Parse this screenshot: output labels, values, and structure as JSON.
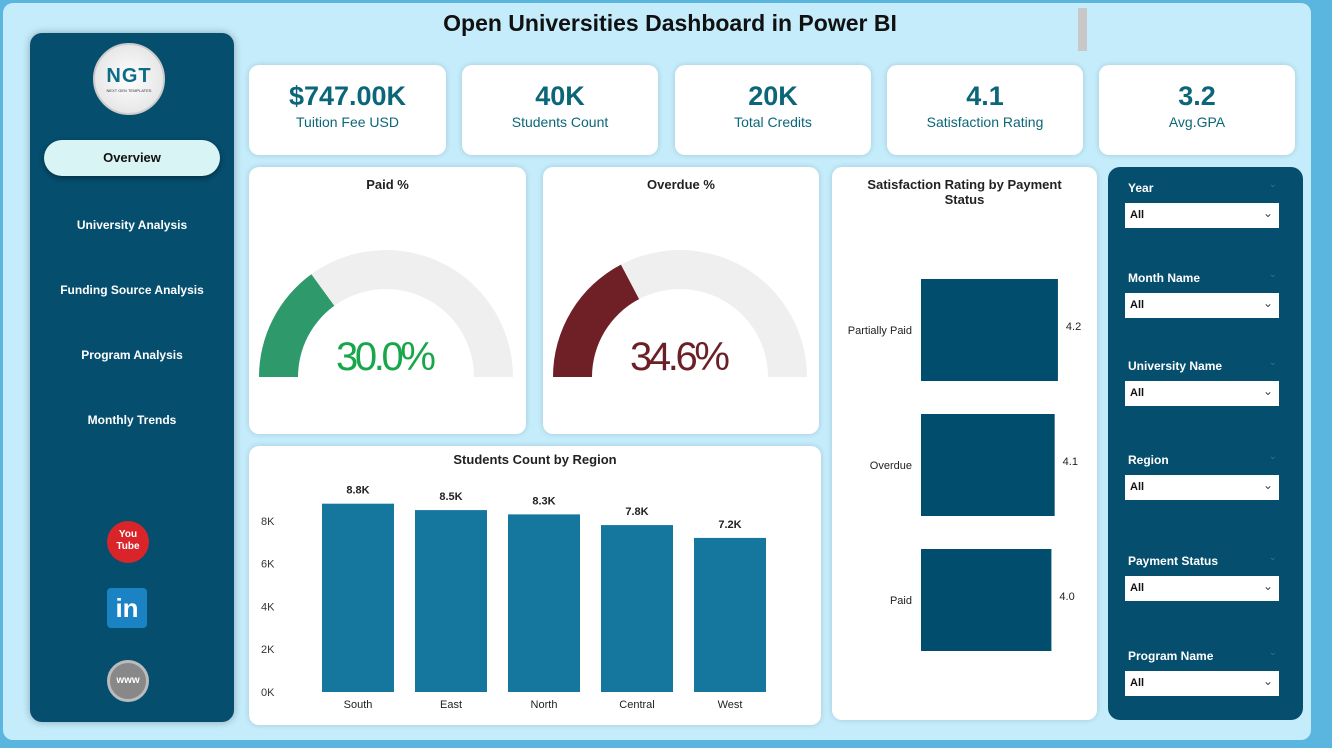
{
  "title": "Open Universities Dashboard in Power BI",
  "logo": {
    "text": "NGT",
    "subtext": "NEXT GEN TEMPLATES"
  },
  "nav": [
    {
      "label": "Overview",
      "active": true
    },
    {
      "label": "University Analysis"
    },
    {
      "label": "Funding Source Analysis"
    },
    {
      "label": "Program Analysis"
    },
    {
      "label": "Monthly Trends"
    }
  ],
  "social": [
    {
      "icon": "youtube-icon",
      "label": "You Tube"
    },
    {
      "icon": "linkedin-icon",
      "label": "in"
    },
    {
      "icon": "globe-icon",
      "label": "www"
    }
  ],
  "kpis": [
    {
      "value": "$747.00K",
      "label": "Tuition Fee USD"
    },
    {
      "value": "40K",
      "label": "Students Count"
    },
    {
      "value": "20K",
      "label": "Total Credits"
    },
    {
      "value": "4.1",
      "label": "Satisfaction Rating"
    },
    {
      "value": "3.2",
      "label": "Avg.GPA"
    }
  ],
  "gauges": [
    {
      "title": "Paid %",
      "value": 30.0,
      "label": "30.0%",
      "color": "#2e9a6c",
      "text_color": "#17a64a"
    },
    {
      "title": "Overdue %",
      "value": 34.6,
      "label": "34.6%",
      "color": "#6e2026",
      "text_color": "#6b1f26"
    }
  ],
  "chart_data": [
    {
      "type": "bar",
      "title": "Students Count by Region",
      "categories": [
        "South",
        "East",
        "North",
        "Central",
        "West"
      ],
      "values": [
        8.8,
        8.5,
        8.3,
        7.8,
        7.2
      ],
      "data_labels": [
        "8.8K",
        "8.5K",
        "8.3K",
        "7.8K",
        "7.2K"
      ],
      "ylim": [
        0,
        8
      ],
      "yticks": [
        "0K",
        "2K",
        "4K",
        "6K",
        "8K"
      ],
      "color": "#15769e"
    },
    {
      "type": "bar",
      "orientation": "horizontal",
      "title": "Satisfaction Rating by Payment Status",
      "categories": [
        "Partially Paid",
        "Overdue",
        "Paid"
      ],
      "values": [
        4.2,
        4.1,
        4.0
      ],
      "data_labels": [
        "4.2",
        "4.1",
        "4.0"
      ],
      "color": "#004d6d"
    }
  ],
  "slicers": [
    {
      "label": "Year",
      "value": "All"
    },
    {
      "label": "Month Name",
      "value": "All"
    },
    {
      "label": "University Name",
      "value": "All"
    },
    {
      "label": "Region",
      "value": "All"
    },
    {
      "label": "Payment Status",
      "value": "All"
    },
    {
      "label": "Program Name",
      "value": "All"
    }
  ]
}
